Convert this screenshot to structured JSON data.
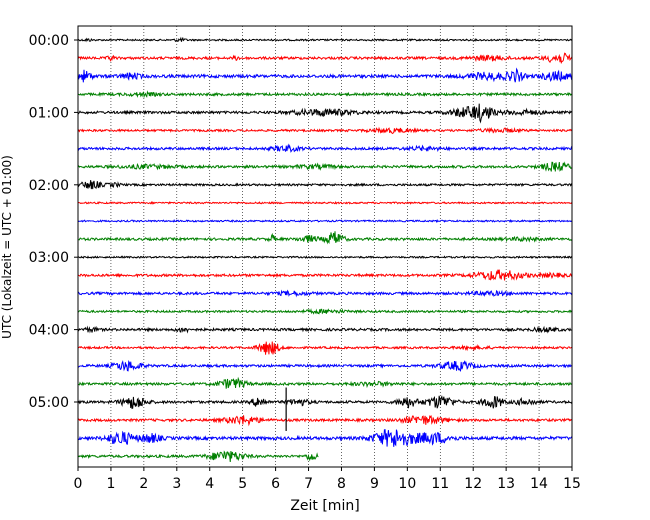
{
  "chart_data": {
    "type": "line",
    "chart_kind": "seismic helicorder",
    "xlabel": "Zeit  [min]",
    "ylabel": "UTC (Lokalzeit = UTC + 01:00)",
    "x_range": [
      0,
      15
    ],
    "x_ticks": [
      "0",
      "1",
      "2",
      "3",
      "4",
      "5",
      "6",
      "7",
      "8",
      "9",
      "10",
      "11",
      "12",
      "13",
      "14",
      "15"
    ],
    "y_tick_labels": [
      "00:00",
      "01:00",
      "02:00",
      "03:00",
      "04:00",
      "05:00"
    ],
    "y_tick_rows": [
      0,
      4,
      8,
      12,
      16,
      20
    ],
    "trace_interval_min": 15,
    "vertical_grid": "dotted",
    "trace_colors": [
      "#000000",
      "#ff0000",
      "#0000ff",
      "#008000"
    ],
    "rows": [
      {
        "row": 0,
        "base": 0.8,
        "events": [
          {
            "t": 3.1,
            "a": 1.5,
            "w": 0.15
          },
          {
            "t": 0.3,
            "a": 1.2,
            "w": 0.1
          }
        ]
      },
      {
        "row": 1,
        "base": 1.2,
        "events": [
          {
            "t": 1.0,
            "a": 2.5,
            "w": 0.1
          },
          {
            "t": 4.8,
            "a": 1.5,
            "w": 0.1
          },
          {
            "t": 12.5,
            "a": 2,
            "w": 0.6
          },
          {
            "t": 14.6,
            "a": 4.5,
            "w": 0.4
          }
        ]
      },
      {
        "row": 2,
        "base": 1.5,
        "events": [
          {
            "t": 0.2,
            "a": 5,
            "w": 0.2
          },
          {
            "t": 1.6,
            "a": 2.5,
            "w": 0.3
          },
          {
            "t": 12.5,
            "a": 3,
            "w": 0.7
          },
          {
            "t": 13.3,
            "a": 5,
            "w": 0.2
          },
          {
            "t": 14.5,
            "a": 4,
            "w": 0.4
          }
        ]
      },
      {
        "row": 3,
        "base": 1.2,
        "events": [
          {
            "t": 2.0,
            "a": 1.2,
            "w": 0.5
          }
        ]
      },
      {
        "row": 4,
        "base": 1.2,
        "events": [
          {
            "t": 7.5,
            "a": 3,
            "w": 0.9
          },
          {
            "t": 11.8,
            "a": 4.5,
            "w": 0.5
          },
          {
            "t": 12.3,
            "a": 6.5,
            "w": 0.3
          },
          {
            "t": 13.5,
            "a": 2,
            "w": 0.6
          }
        ]
      },
      {
        "row": 5,
        "base": 1.0,
        "events": [
          {
            "t": 9.5,
            "a": 2,
            "w": 0.6
          },
          {
            "t": 12.8,
            "a": 1.5,
            "w": 0.6
          }
        ]
      },
      {
        "row": 6,
        "base": 1.2,
        "events": [
          {
            "t": 6.3,
            "a": 2.5,
            "w": 0.4
          },
          {
            "t": 10.5,
            "a": 1.5,
            "w": 0.5
          }
        ]
      },
      {
        "row": 7,
        "base": 1.2,
        "events": [
          {
            "t": 2.1,
            "a": 1.5,
            "w": 0.8
          },
          {
            "t": 7.2,
            "a": 1.5,
            "w": 0.6
          },
          {
            "t": 14.5,
            "a": 4,
            "w": 0.4
          }
        ]
      },
      {
        "row": 8,
        "base": 1.0,
        "events": [
          {
            "t": 0.4,
            "a": 4,
            "w": 0.3
          },
          {
            "t": 1.1,
            "a": 1.5,
            "w": 0.2
          }
        ]
      },
      {
        "row": 9,
        "base": 0.8,
        "events": []
      },
      {
        "row": 10,
        "base": 0.8,
        "events": []
      },
      {
        "row": 11,
        "base": 1.2,
        "events": [
          {
            "t": 5.9,
            "a": 4,
            "w": 0.08
          },
          {
            "t": 7.0,
            "a": 3,
            "w": 0.3
          },
          {
            "t": 7.8,
            "a": 7,
            "w": 0.25
          },
          {
            "t": 13.5,
            "a": 1.2,
            "w": 0.5
          }
        ]
      },
      {
        "row": 12,
        "base": 0.8,
        "events": []
      },
      {
        "row": 13,
        "base": 1.2,
        "events": [
          {
            "t": 12.8,
            "a": 4.5,
            "w": 0.7
          },
          {
            "t": 14.4,
            "a": 1.5,
            "w": 0.4
          }
        ]
      },
      {
        "row": 14,
        "base": 1.2,
        "events": [
          {
            "t": 6.5,
            "a": 1.5,
            "w": 0.5
          },
          {
            "t": 12.5,
            "a": 1.5,
            "w": 0.6
          }
        ]
      },
      {
        "row": 15,
        "base": 1.0,
        "events": [
          {
            "t": 7.5,
            "a": 1.5,
            "w": 0.6
          }
        ]
      },
      {
        "row": 16,
        "base": 1.2,
        "events": [
          {
            "t": 0.4,
            "a": 2,
            "w": 0.2
          },
          {
            "t": 3.2,
            "a": 2,
            "w": 0.2
          },
          {
            "t": 14.2,
            "a": 1.5,
            "w": 0.4
          }
        ]
      },
      {
        "row": 17,
        "base": 1.0,
        "events": [
          {
            "t": 5.8,
            "a": 7,
            "w": 0.3
          },
          {
            "t": 12.0,
            "a": 1.2,
            "w": 0.5
          }
        ]
      },
      {
        "row": 18,
        "base": 1.2,
        "events": [
          {
            "t": 1.5,
            "a": 4.5,
            "w": 0.4
          },
          {
            "t": 11.5,
            "a": 4,
            "w": 0.5
          }
        ]
      },
      {
        "row": 19,
        "base": 1.2,
        "events": [
          {
            "t": 4.7,
            "a": 5,
            "w": 0.4
          },
          {
            "t": 9.0,
            "a": 1.5,
            "w": 0.6
          }
        ]
      },
      {
        "row": 20,
        "base": 1.2,
        "events": [
          {
            "t": 1.7,
            "a": 6,
            "w": 0.35
          },
          {
            "t": 5.5,
            "a": 5,
            "w": 0.2
          },
          {
            "t": 6.7,
            "a": 3,
            "w": 0.3
          },
          {
            "t": 10.0,
            "a": 5,
            "w": 0.3
          },
          {
            "t": 11.0,
            "a": 6,
            "w": 0.4
          },
          {
            "t": 12.6,
            "a": 6,
            "w": 0.3
          },
          {
            "t": 13.6,
            "a": 3,
            "w": 0.3
          }
        ]
      },
      {
        "row": 21,
        "base": 1.2,
        "events": [
          {
            "t": 5.0,
            "a": 4,
            "w": 0.5
          },
          {
            "t": 10.5,
            "a": 4,
            "w": 0.6
          }
        ]
      },
      {
        "row": 22,
        "base": 1.5,
        "events": [
          {
            "t": 1.3,
            "a": 6,
            "w": 0.4
          },
          {
            "t": 2.2,
            "a": 4,
            "w": 0.3
          },
          {
            "t": 9.6,
            "a": 9,
            "w": 0.6
          },
          {
            "t": 10.8,
            "a": 5,
            "w": 0.5
          }
        ]
      },
      {
        "row": 23,
        "base": 1.2,
        "end_min": 7.3,
        "events": [
          {
            "t": 4.5,
            "a": 5,
            "w": 0.5
          },
          {
            "t": 7.1,
            "a": 4,
            "w": 0.15
          }
        ]
      }
    ],
    "spike": {
      "row_from": 19.2,
      "row_to": 21.6,
      "t": 6.32
    }
  }
}
